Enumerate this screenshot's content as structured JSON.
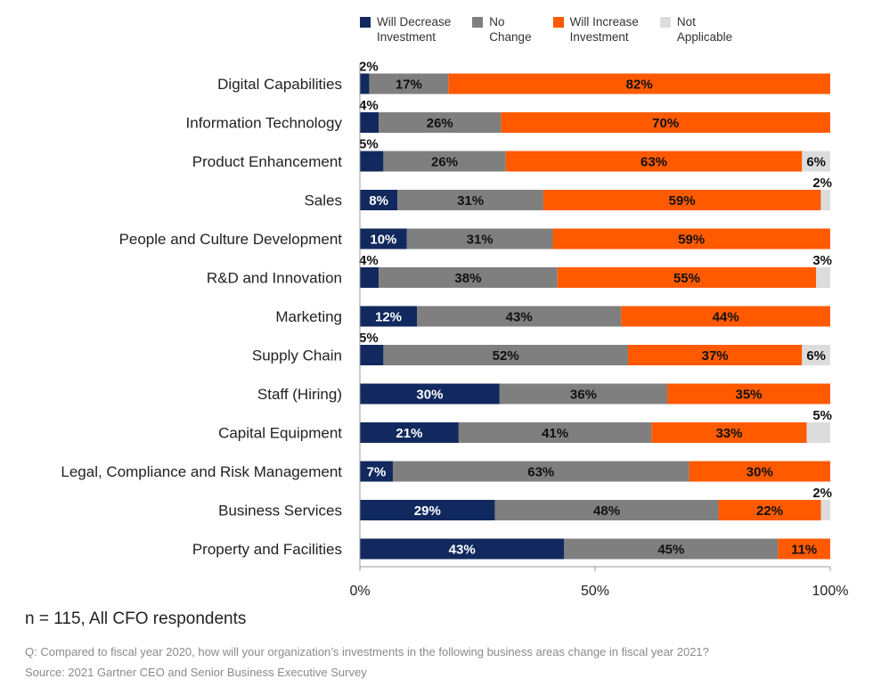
{
  "legend": {
    "items": [
      {
        "key": "decrease",
        "label": "Will Decrease\nInvestment",
        "color": "#11295e"
      },
      {
        "key": "nochange",
        "label": "No\nChange",
        "color": "#7f7f7f"
      },
      {
        "key": "increase",
        "label": "Will Increase\nInvestment",
        "color": "#ff5a00"
      },
      {
        "key": "na",
        "label": "Not\nApplicable",
        "color": "#dcdcdc"
      }
    ]
  },
  "chart_data": {
    "type": "bar",
    "orientation": "horizontal",
    "stacked": true,
    "categories": [
      "Digital Capabilities",
      "Information Technology",
      "Product Enhancement",
      "Sales",
      "People and Culture Development",
      "R&D and Innovation",
      "Marketing",
      "Supply Chain",
      "Staff (Hiring)",
      "Capital Equipment",
      "Legal, Compliance and Risk Management",
      "Business Services",
      "Property and Facilities"
    ],
    "series": [
      {
        "name": "Will Decrease Investment",
        "key": "decrease",
        "color": "#11295e",
        "values": [
          2,
          4,
          5,
          8,
          10,
          4,
          12,
          5,
          30,
          21,
          7,
          29,
          43
        ]
      },
      {
        "name": "No Change",
        "key": "nochange",
        "color": "#7f7f7f",
        "values": [
          17,
          26,
          26,
          31,
          31,
          38,
          43,
          52,
          36,
          41,
          63,
          48,
          45
        ]
      },
      {
        "name": "Will Increase Investment",
        "key": "increase",
        "color": "#ff5a00",
        "values": [
          82,
          70,
          63,
          59,
          59,
          55,
          44,
          37,
          35,
          33,
          30,
          22,
          11
        ]
      },
      {
        "name": "Not Applicable",
        "key": "na",
        "color": "#dcdcdc",
        "values": [
          0,
          0,
          6,
          2,
          0,
          3,
          0,
          6,
          0,
          5,
          0,
          2,
          0
        ]
      }
    ],
    "xlim": [
      0,
      100
    ],
    "xticks": [
      "0%",
      "50%",
      "100%"
    ],
    "value_suffix": "%"
  },
  "footer": {
    "sample": "n = 115, All CFO respondents",
    "question": "Q: Compared to fiscal year 2020, how will your organization’s investments in the following business areas change in fiscal year 2021?",
    "source": "Source: 2021 Gartner CEO and Senior Business Executive Survey"
  }
}
